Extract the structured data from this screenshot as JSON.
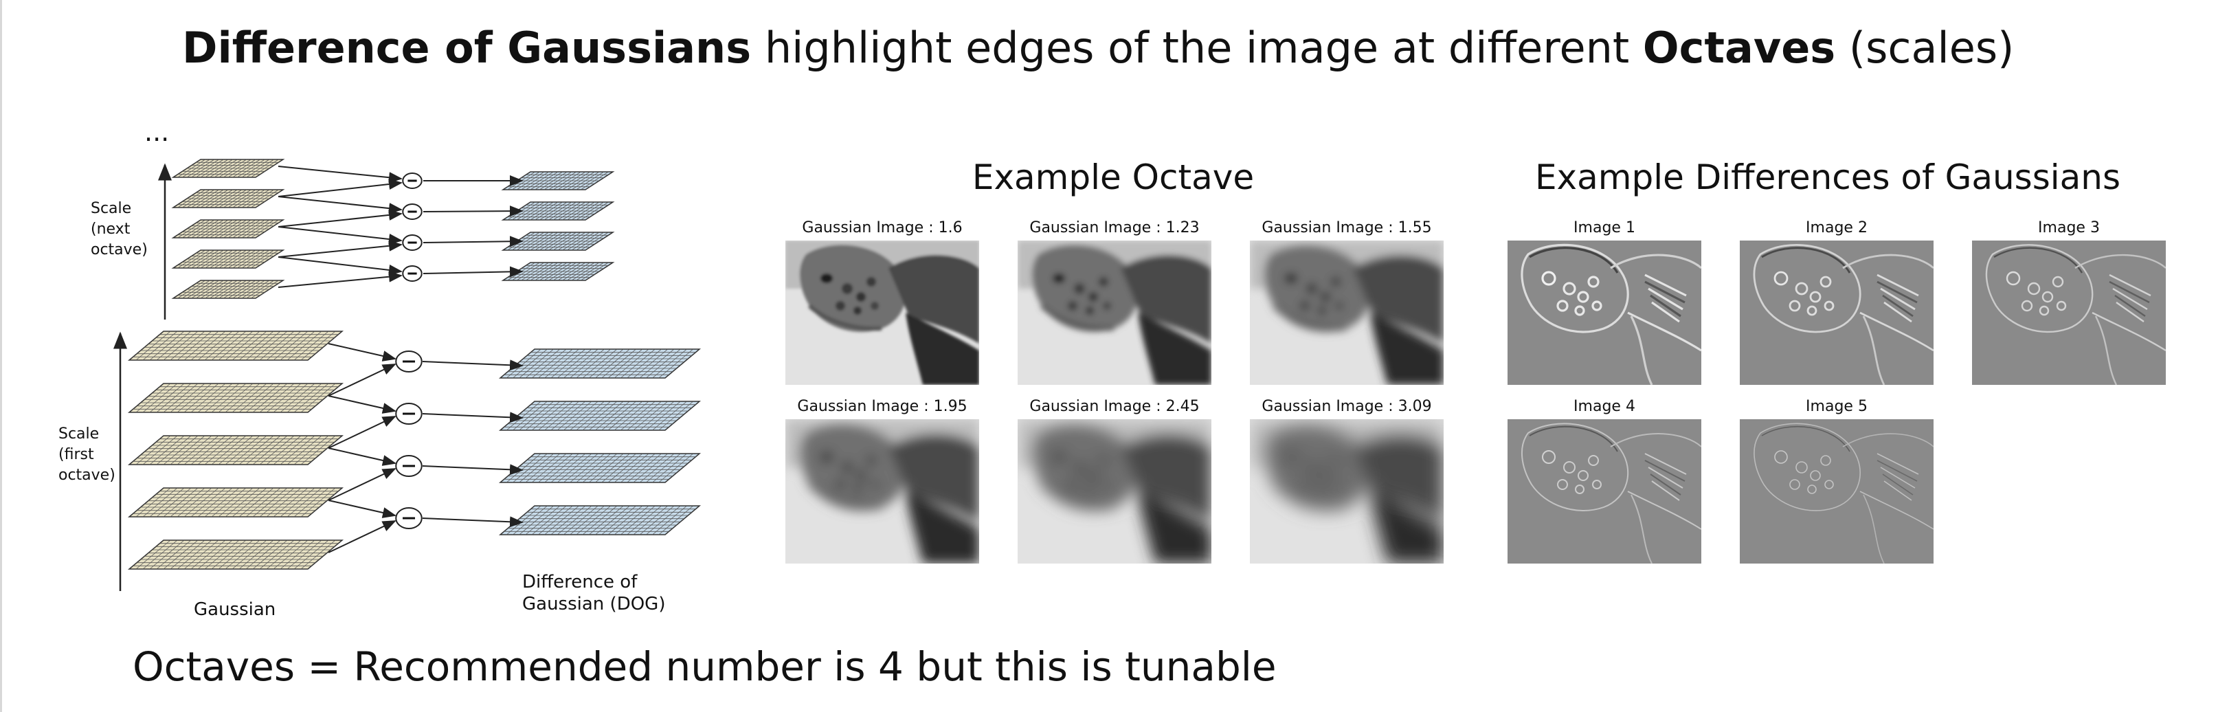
{
  "header": {
    "title_bold_1": "Difference of Gaussians",
    "title_mid": " highlight edges of the image at different ",
    "title_bold_2": "Octaves",
    "title_end": " (scales)"
  },
  "diagram": {
    "ellipsis": "...",
    "label_next_octave": [
      "Scale",
      "(next",
      "octave)"
    ],
    "label_first_octave": [
      "Scale",
      "(first",
      "octave)"
    ],
    "label_gaussian": "Gaussian",
    "label_dog": [
      "Difference of",
      "Gaussian (DOG)"
    ],
    "minus_symbol": "−",
    "colors": {
      "gaussian_layer": "#e8e2c4",
      "dog_layer": "#c8dceb",
      "grid_line": "#555555"
    }
  },
  "octave_panel": {
    "title": "Example Octave",
    "images": [
      "Gaussian Image : 1.6",
      "Gaussian Image : 1.23",
      "Gaussian Image : 1.55",
      "Gaussian Image : 1.95",
      "Gaussian Image : 2.45",
      "Gaussian Image : 3.09"
    ]
  },
  "dog_panel": {
    "title": "Example Differences of Gaussians",
    "images": [
      "Image 1",
      "Image 2",
      "Image 3",
      "Image 4",
      "Image 5"
    ]
  },
  "footer": {
    "text": "Octaves = Recommended number is 4 but this is tunable"
  }
}
